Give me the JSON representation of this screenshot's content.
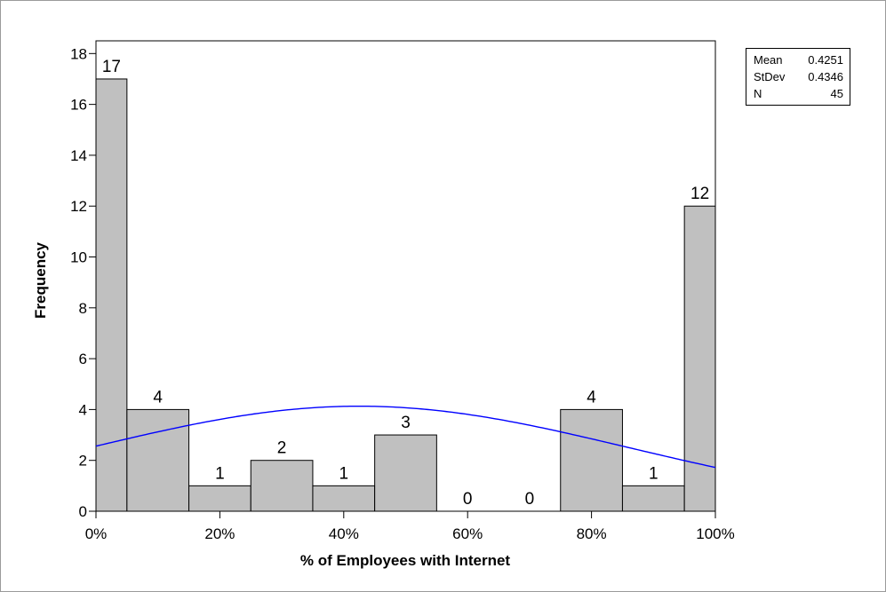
{
  "chart_data": {
    "type": "bar",
    "title": "",
    "xlabel": "% of Employees with Internet",
    "ylabel": "Frequency",
    "bin_width": 0.1,
    "bins": [
      {
        "x_start": 0.0,
        "x_end": 0.05,
        "count": 17
      },
      {
        "x_start": 0.05,
        "x_end": 0.15,
        "count": 4
      },
      {
        "x_start": 0.15,
        "x_end": 0.25,
        "count": 1
      },
      {
        "x_start": 0.25,
        "x_end": 0.35,
        "count": 2
      },
      {
        "x_start": 0.35,
        "x_end": 0.45,
        "count": 1
      },
      {
        "x_start": 0.45,
        "x_end": 0.55,
        "count": 3
      },
      {
        "x_start": 0.55,
        "x_end": 0.65,
        "count": 0
      },
      {
        "x_start": 0.65,
        "x_end": 0.75,
        "count": 0
      },
      {
        "x_start": 0.75,
        "x_end": 0.85,
        "count": 4
      },
      {
        "x_start": 0.85,
        "x_end": 0.95,
        "count": 1
      },
      {
        "x_start": 0.95,
        "x_end": 1.0,
        "count": 12
      }
    ],
    "bar_labels": [
      {
        "x": 0.025,
        "count": 17
      },
      {
        "x": 0.1,
        "count": 4
      },
      {
        "x": 0.2,
        "count": 1
      },
      {
        "x": 0.3,
        "count": 2
      },
      {
        "x": 0.4,
        "count": 1
      },
      {
        "x": 0.5,
        "count": 3
      },
      {
        "x": 0.6,
        "count": 0
      },
      {
        "x": 0.7,
        "count": 0
      },
      {
        "x": 0.8,
        "count": 4
      },
      {
        "x": 0.9,
        "count": 1
      },
      {
        "x": 0.975,
        "count": 12
      }
    ],
    "xlim": [
      0,
      1
    ],
    "ylim": [
      0,
      18.5
    ],
    "x_ticks": [
      {
        "value": 0.0,
        "label": "0%"
      },
      {
        "value": 0.2,
        "label": "20%"
      },
      {
        "value": 0.4,
        "label": "40%"
      },
      {
        "value": 0.6,
        "label": "60%"
      },
      {
        "value": 0.8,
        "label": "80%"
      },
      {
        "value": 1.0,
        "label": "100%"
      }
    ],
    "y_ticks": [
      0,
      2,
      4,
      6,
      8,
      10,
      12,
      14,
      16,
      18
    ],
    "fit_curve": {
      "type": "normal",
      "mean": 0.4251,
      "stdev": 0.4346,
      "n": 45,
      "bin_width": 0.1,
      "color": "#0000ff"
    },
    "bar_color": "#c0c0c0",
    "grid": false,
    "legend": "none",
    "stats": [
      {
        "label": "Mean",
        "value": "0.4251"
      },
      {
        "label": "StDev",
        "value": "0.4346"
      },
      {
        "label": "N",
        "value": "45"
      }
    ]
  }
}
